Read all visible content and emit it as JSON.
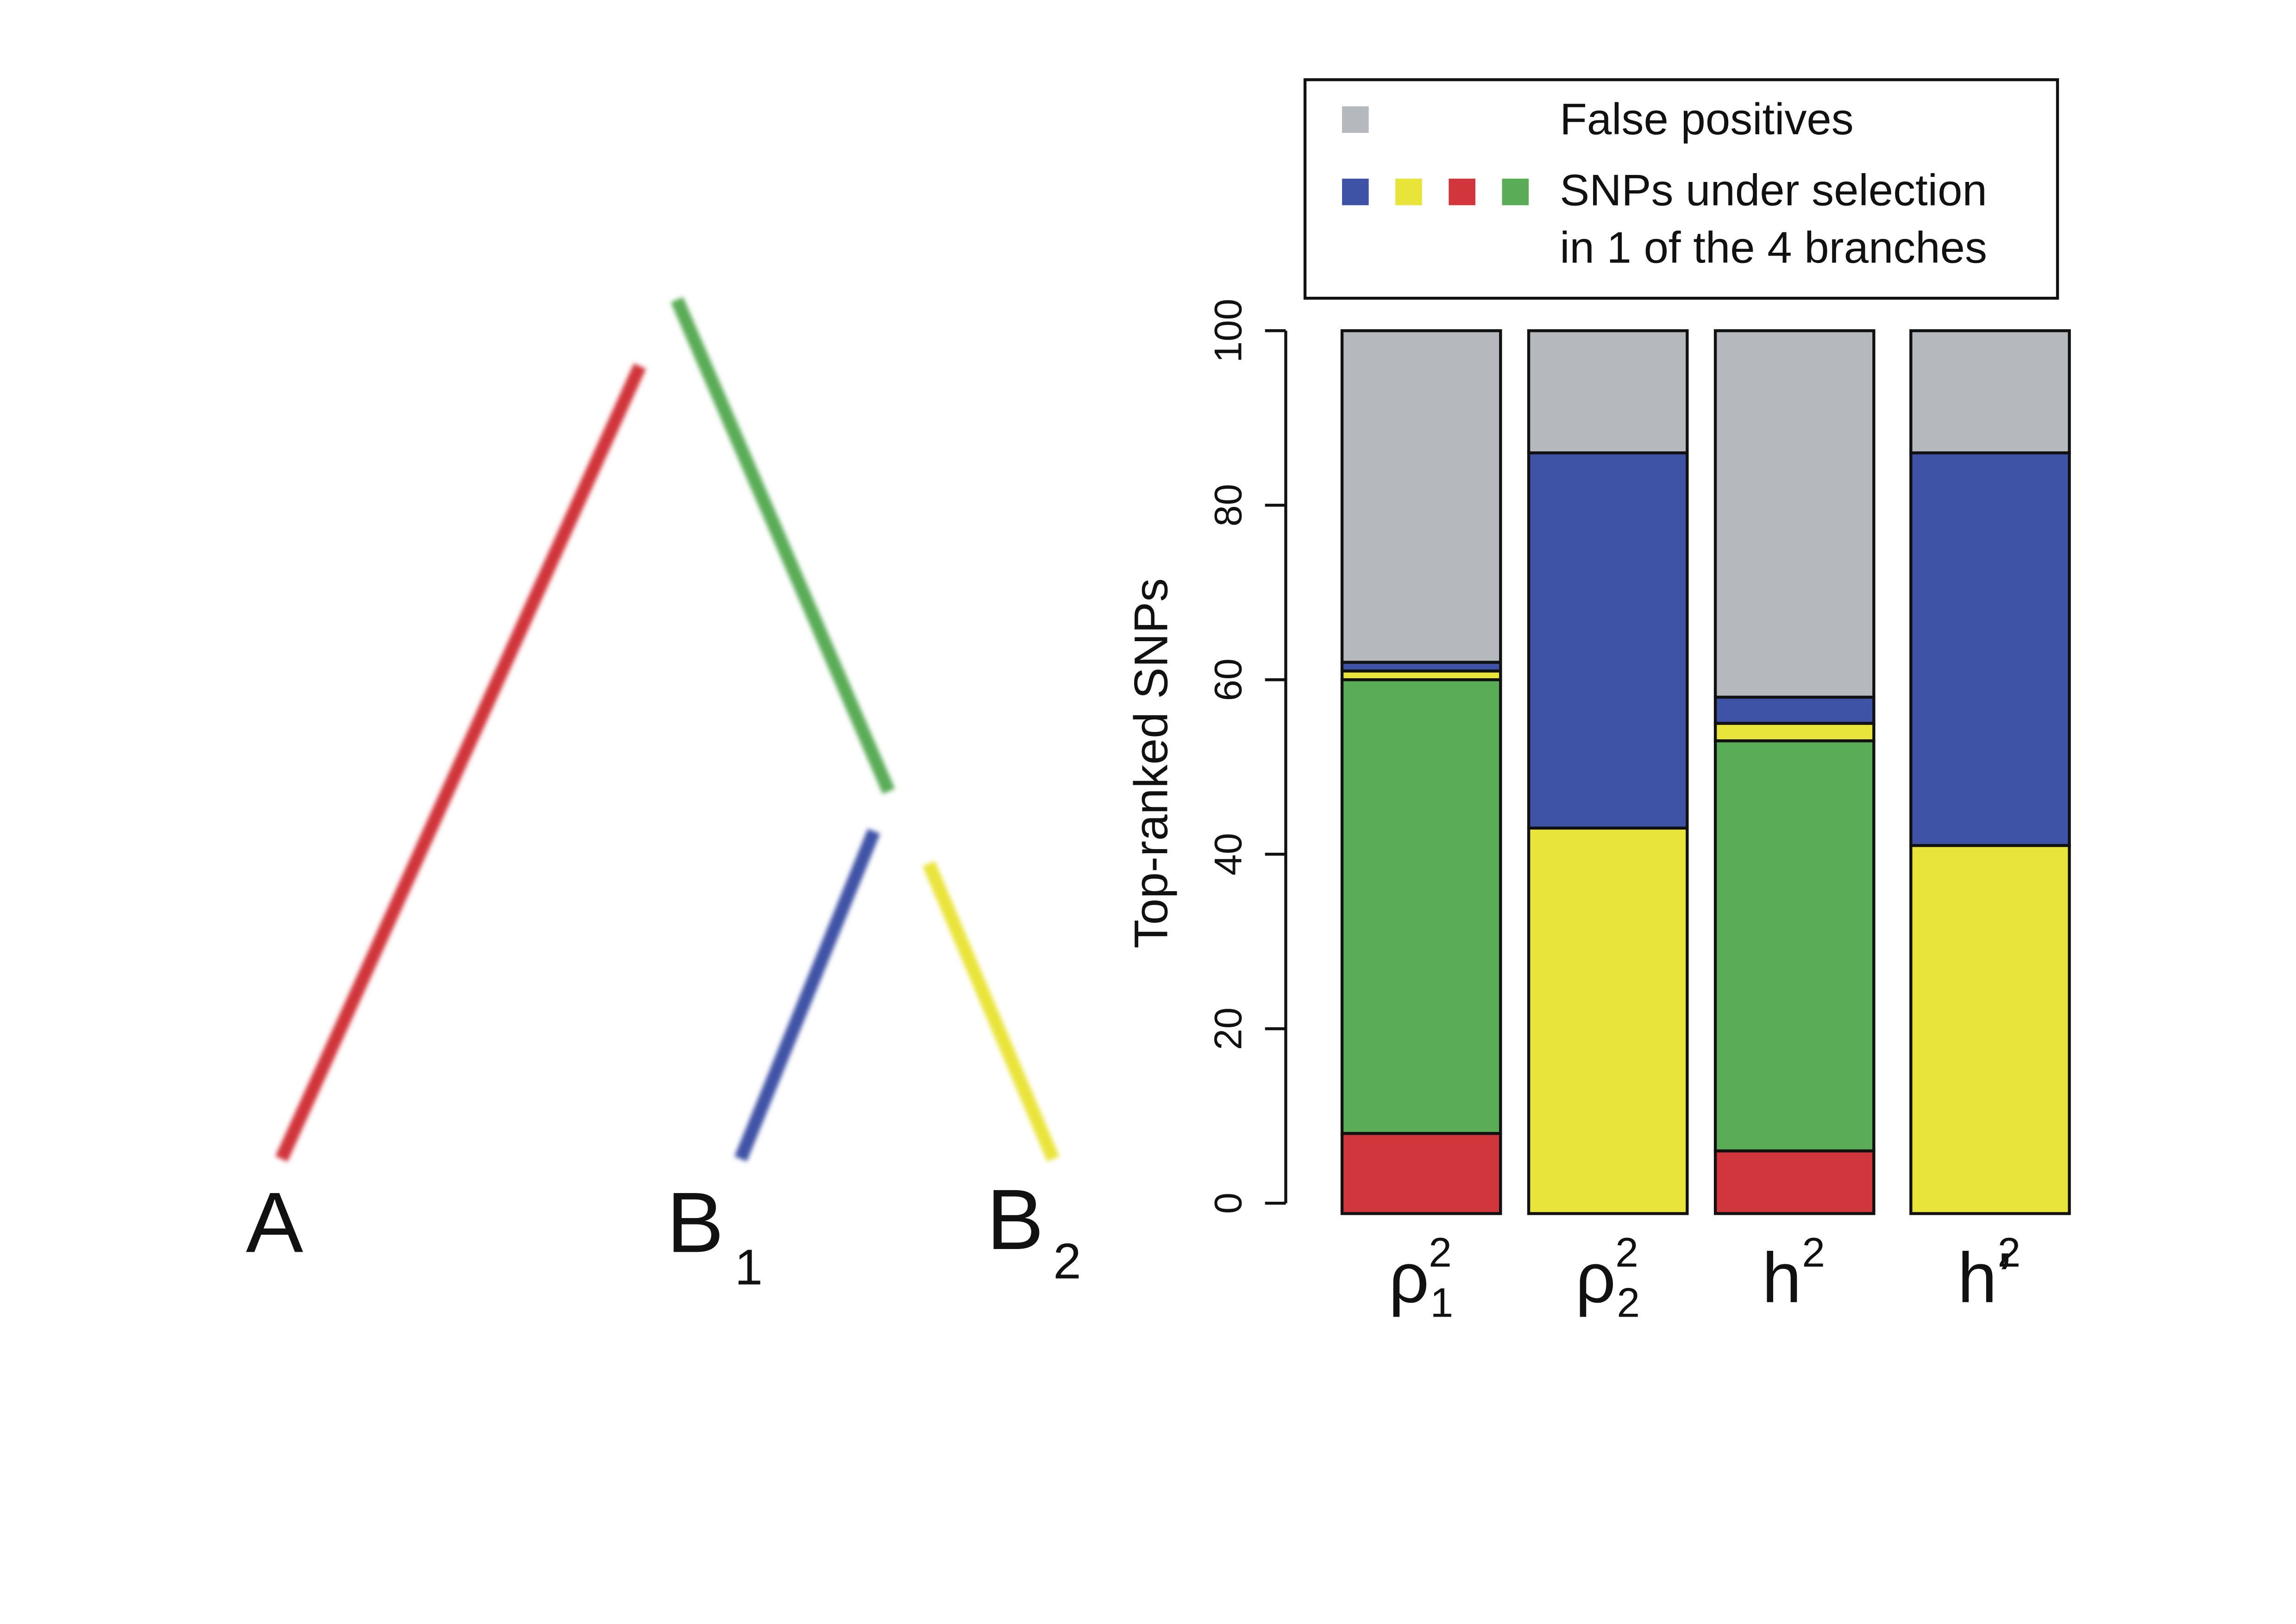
{
  "tree": {
    "branches": [
      {
        "name": "branch-A",
        "color": "#d0363b"
      },
      {
        "name": "branch-B-ancestral",
        "color": "#5aac57"
      },
      {
        "name": "branch-B1",
        "color": "#3f53a6"
      },
      {
        "name": "branch-B2",
        "color": "#e9e43a"
      }
    ],
    "leaves": {
      "a": "A",
      "b1": "B",
      "b1_sub": "1",
      "b2": "B",
      "b2_sub": "2"
    }
  },
  "legend": {
    "false_positive_label": "False positives",
    "selection_line1": "SNPs under selection",
    "selection_line2": "in 1 of the 4 branches",
    "false_positive_color": "#b5b8bd",
    "selection_colors": [
      "#3f53a6",
      "#e9e43a",
      "#d0363b",
      "#5aac57"
    ]
  },
  "chart_data": {
    "type": "bar",
    "stacked": true,
    "ylabel": "Top-ranked SNPs",
    "ylim": [
      0,
      100
    ],
    "yticks": [
      "0",
      "20",
      "40",
      "60",
      "80",
      "100"
    ],
    "categories": [
      {
        "base": "ρ",
        "sub": "1",
        "sup": "2"
      },
      {
        "base": "ρ",
        "sub": "2",
        "sup": "2"
      },
      {
        "base": "h",
        "sub": "",
        "sup": "2"
      },
      {
        "base": "h’",
        "sub": "",
        "sup": "2"
      }
    ],
    "series": [
      {
        "name": "red branch (A)",
        "color": "#d0363b",
        "values": [
          8,
          0,
          6,
          0
        ]
      },
      {
        "name": "green branch (ancestral B)",
        "color": "#5aac57",
        "values": [
          52,
          0,
          47,
          0
        ]
      },
      {
        "name": "yellow branch (B2)",
        "color": "#e9e43a",
        "values": [
          1,
          43,
          2,
          41
        ]
      },
      {
        "name": "blue branch (B1)",
        "color": "#3f53a6",
        "values": [
          1,
          43,
          3,
          45
        ]
      },
      {
        "name": "False positives",
        "color": "#b5b8bd",
        "values": [
          38,
          14,
          42,
          14
        ]
      }
    ]
  }
}
